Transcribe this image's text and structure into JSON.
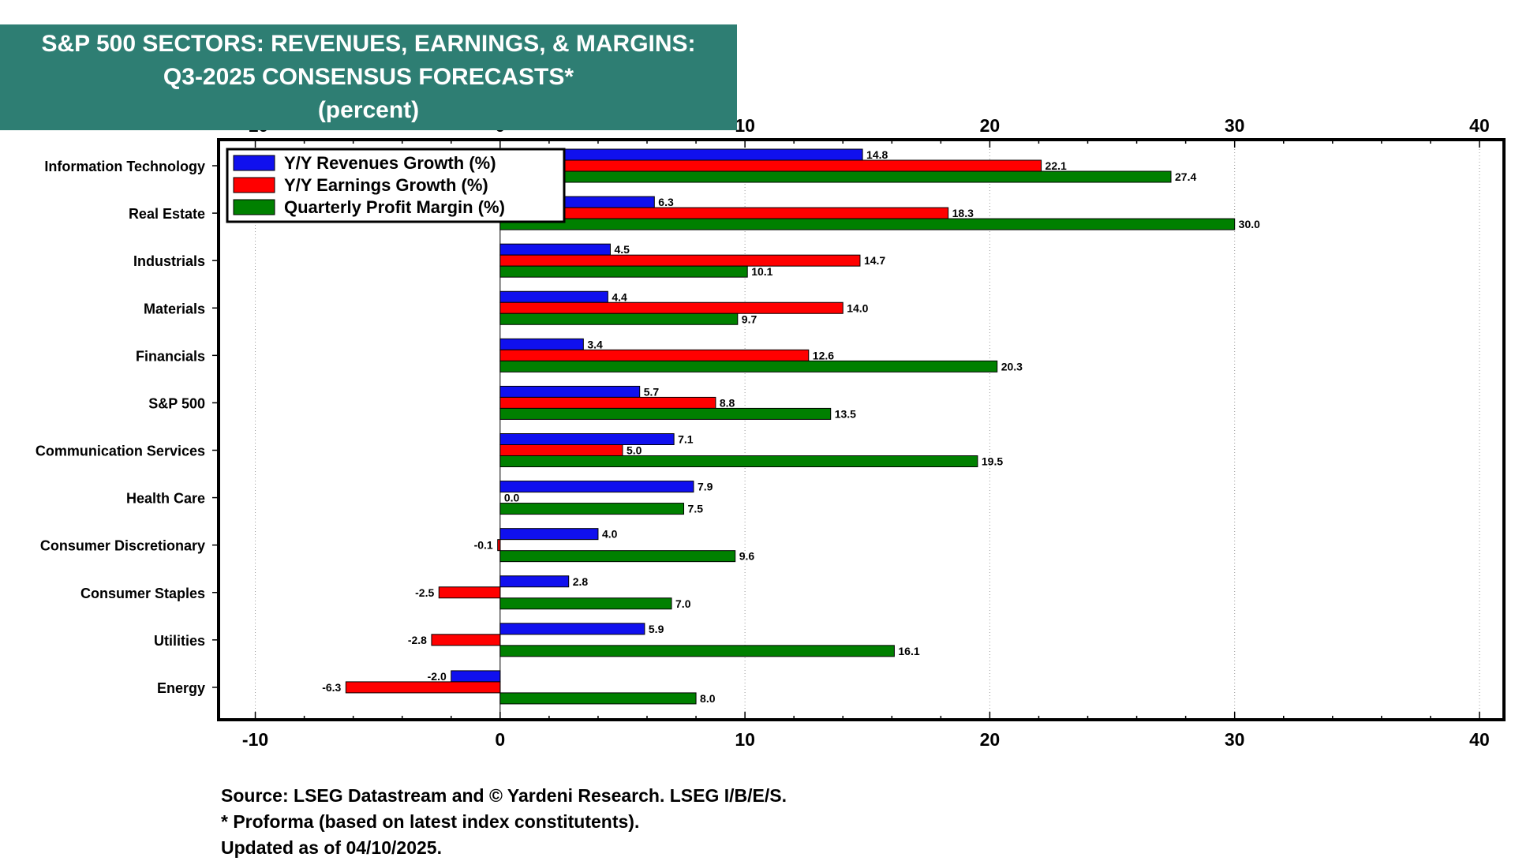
{
  "title": {
    "line1": "S&P 500 SECTORS: REVENUES, EARNINGS, & MARGINS:",
    "line2": "Q3-2025 CONSENSUS FORECASTS*",
    "line3": "(percent)"
  },
  "notes": {
    "source": "Source: LSEG Datastream and © Yardeni Research. LSEG I/B/E/S.",
    "footnote": "* Proforma (based on latest index constitutents).",
    "updated": "Updated as of 04/10/2025."
  },
  "colors": {
    "revenues": "#1010ee",
    "earnings": "#ff0000",
    "margin": "#008000",
    "title_bg": "#2e7e73"
  },
  "chart_data": {
    "type": "bar",
    "orientation": "horizontal",
    "title": "S&P 500 SECTORS: REVENUES, EARNINGS, & MARGINS: Q3-2025 CONSENSUS FORECASTS* (percent)",
    "categories": [
      "Information Technology",
      "Real Estate",
      "Industrials",
      "Materials",
      "Financials",
      "S&P 500",
      "Communication Services",
      "Health Care",
      "Consumer Discretionary",
      "Consumer Staples",
      "Utilities",
      "Energy"
    ],
    "series": [
      {
        "name": "Y/Y Revenues Growth (%)",
        "color": "#1010ee",
        "values": [
          14.8,
          6.3,
          4.5,
          4.4,
          3.4,
          5.7,
          7.1,
          7.9,
          4.0,
          2.8,
          5.9,
          -2.0
        ]
      },
      {
        "name": "Y/Y Earnings Growth (%)",
        "color": "#ff0000",
        "values": [
          22.1,
          18.3,
          14.7,
          14.0,
          12.6,
          8.8,
          5.0,
          0.0,
          -0.1,
          -2.5,
          -2.8,
          -6.3
        ]
      },
      {
        "name": "Quarterly Profit Margin (%)",
        "color": "#008000",
        "values": [
          27.4,
          30.0,
          10.1,
          9.7,
          20.3,
          13.5,
          19.5,
          7.5,
          9.6,
          7.0,
          16.1,
          8.0
        ]
      }
    ],
    "xlim": [
      -11.5,
      41.0
    ],
    "xticks": [
      -10,
      0,
      10,
      20,
      30,
      40
    ],
    "xtick_labels": [
      "-10",
      "0",
      "10",
      "20",
      "30",
      "40"
    ],
    "grid": true,
    "legend_position": "top-left"
  }
}
